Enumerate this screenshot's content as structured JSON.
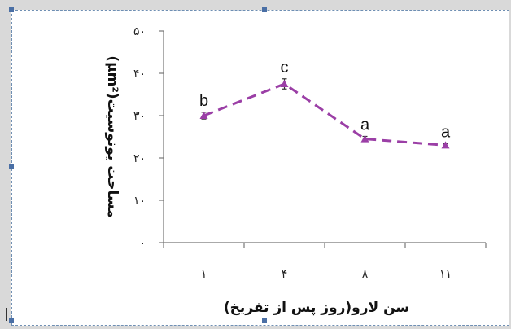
{
  "chart_data": {
    "type": "line",
    "categories": [
      "۱",
      "۴",
      "۸",
      "۱۱"
    ],
    "ylabel": "مساحت یونوسیت(μm²)",
    "xlabel": "سن لارو(روز پس از تفریخ)",
    "ylim": [
      0,
      50
    ],
    "yticks": [
      0,
      10,
      20,
      30,
      40,
      50
    ],
    "ytick_labels": [
      "۰",
      "۱۰",
      "۲۰",
      "۳۰",
      "۴۰",
      "۵۰"
    ],
    "series": [
      {
        "values": [
          30,
          37.5,
          24.5,
          23
        ],
        "errors": [
          0.8,
          1.2,
          0.6,
          0.4
        ],
        "labels": [
          "b",
          "c",
          "a",
          "a"
        ],
        "color": "#9b3fa6",
        "line_style": "dashed",
        "marker": "triangle"
      }
    ],
    "grid": false
  }
}
